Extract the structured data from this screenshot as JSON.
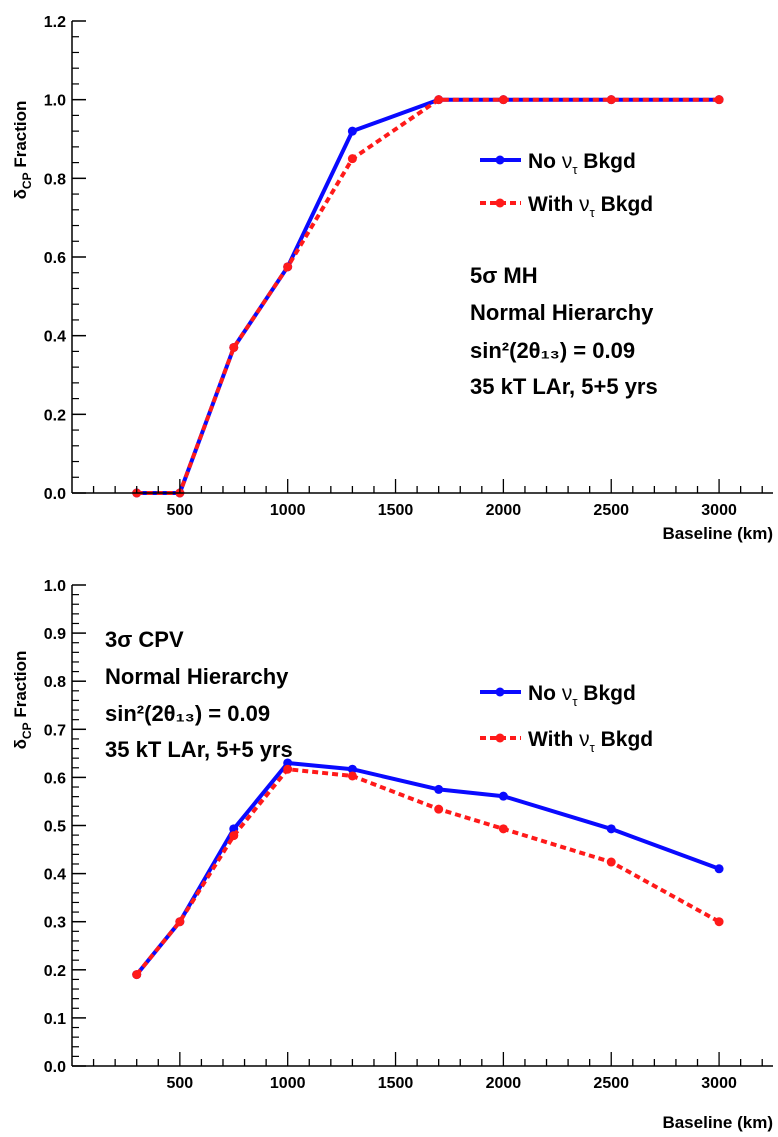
{
  "colors": {
    "no_bkgd": "#0a0aff",
    "with_bkgd": "#ff1a1a",
    "axis": "#000000"
  },
  "chart_data": [
    {
      "type": "line",
      "xlabel": "Baseline (km)",
      "ylabel": "δCP Fraction",
      "ylabel_parts": {
        "main": "δ",
        "sub": "CP",
        "rest": " Fraction"
      },
      "xlim": [
        0,
        3250
      ],
      "ylim": [
        0,
        1.2
      ],
      "xticks": [
        "500",
        "1000",
        "1500",
        "2000",
        "2500",
        "3000"
      ],
      "yticks": [
        "0.0",
        "0.2",
        "0.4",
        "0.6",
        "0.8",
        "1.0",
        "1.2"
      ],
      "x": [
        300,
        500,
        750,
        1000,
        1300,
        1700,
        2000,
        2500,
        3000
      ],
      "series": [
        {
          "name": "No ντ Bkgd",
          "name_parts": {
            "pre": "No ",
            "sym": "ν",
            "sub": "τ",
            "post": " Bkgd"
          },
          "style": "solid",
          "color": "#0a0aff",
          "values": [
            0.0,
            0.0,
            0.37,
            0.575,
            0.92,
            1.0,
            1.0,
            1.0,
            1.0
          ]
        },
        {
          "name": "With ντ Bkgd",
          "name_parts": {
            "pre": "With ",
            "sym": "ν",
            "sub": "τ",
            "post": " Bkgd"
          },
          "style": "dashed",
          "color": "#ff1a1a",
          "values": [
            0.0,
            0.0,
            0.37,
            0.575,
            0.85,
            1.0,
            1.0,
            1.0,
            1.0
          ]
        }
      ],
      "annotations": [
        "5σ MH",
        "Normal Hierarchy",
        "sin²(2θ₁₃) = 0.09",
        "35 kT LAr, 5+5 yrs"
      ],
      "legend": "top-right"
    },
    {
      "type": "line",
      "xlabel": "Baseline (km)",
      "ylabel": "δCP Fraction",
      "ylabel_parts": {
        "main": "δ",
        "sub": "CP",
        "rest": " Fraction"
      },
      "xlim": [
        0,
        3250
      ],
      "ylim": [
        0,
        1.0
      ],
      "xticks": [
        "500",
        "1000",
        "1500",
        "2000",
        "2500",
        "3000"
      ],
      "yticks": [
        "0.0",
        "0.1",
        "0.2",
        "0.3",
        "0.4",
        "0.5",
        "0.6",
        "0.7",
        "0.8",
        "0.9",
        "1.0"
      ],
      "x": [
        300,
        500,
        750,
        1000,
        1300,
        1700,
        2000,
        2500,
        3000
      ],
      "series": [
        {
          "name": "No ντ Bkgd",
          "name_parts": {
            "pre": "No ",
            "sym": "ν",
            "sub": "τ",
            "post": " Bkgd"
          },
          "style": "solid",
          "color": "#0a0aff",
          "values": [
            0.19,
            0.3,
            0.493,
            0.63,
            0.617,
            0.575,
            0.561,
            0.493,
            0.41
          ]
        },
        {
          "name": "With ντ Bkgd",
          "name_parts": {
            "pre": "With ",
            "sym": "ν",
            "sub": "τ",
            "post": " Bkgd"
          },
          "style": "dashed",
          "color": "#ff1a1a",
          "values": [
            0.19,
            0.3,
            0.479,
            0.617,
            0.603,
            0.534,
            0.493,
            0.424,
            0.3
          ]
        }
      ],
      "annotations": [
        "3σ CPV",
        "Normal Hierarchy",
        "sin²(2θ₁₃) = 0.09",
        "35 kT LAr, 5+5 yrs"
      ],
      "legend": "top-right"
    }
  ]
}
